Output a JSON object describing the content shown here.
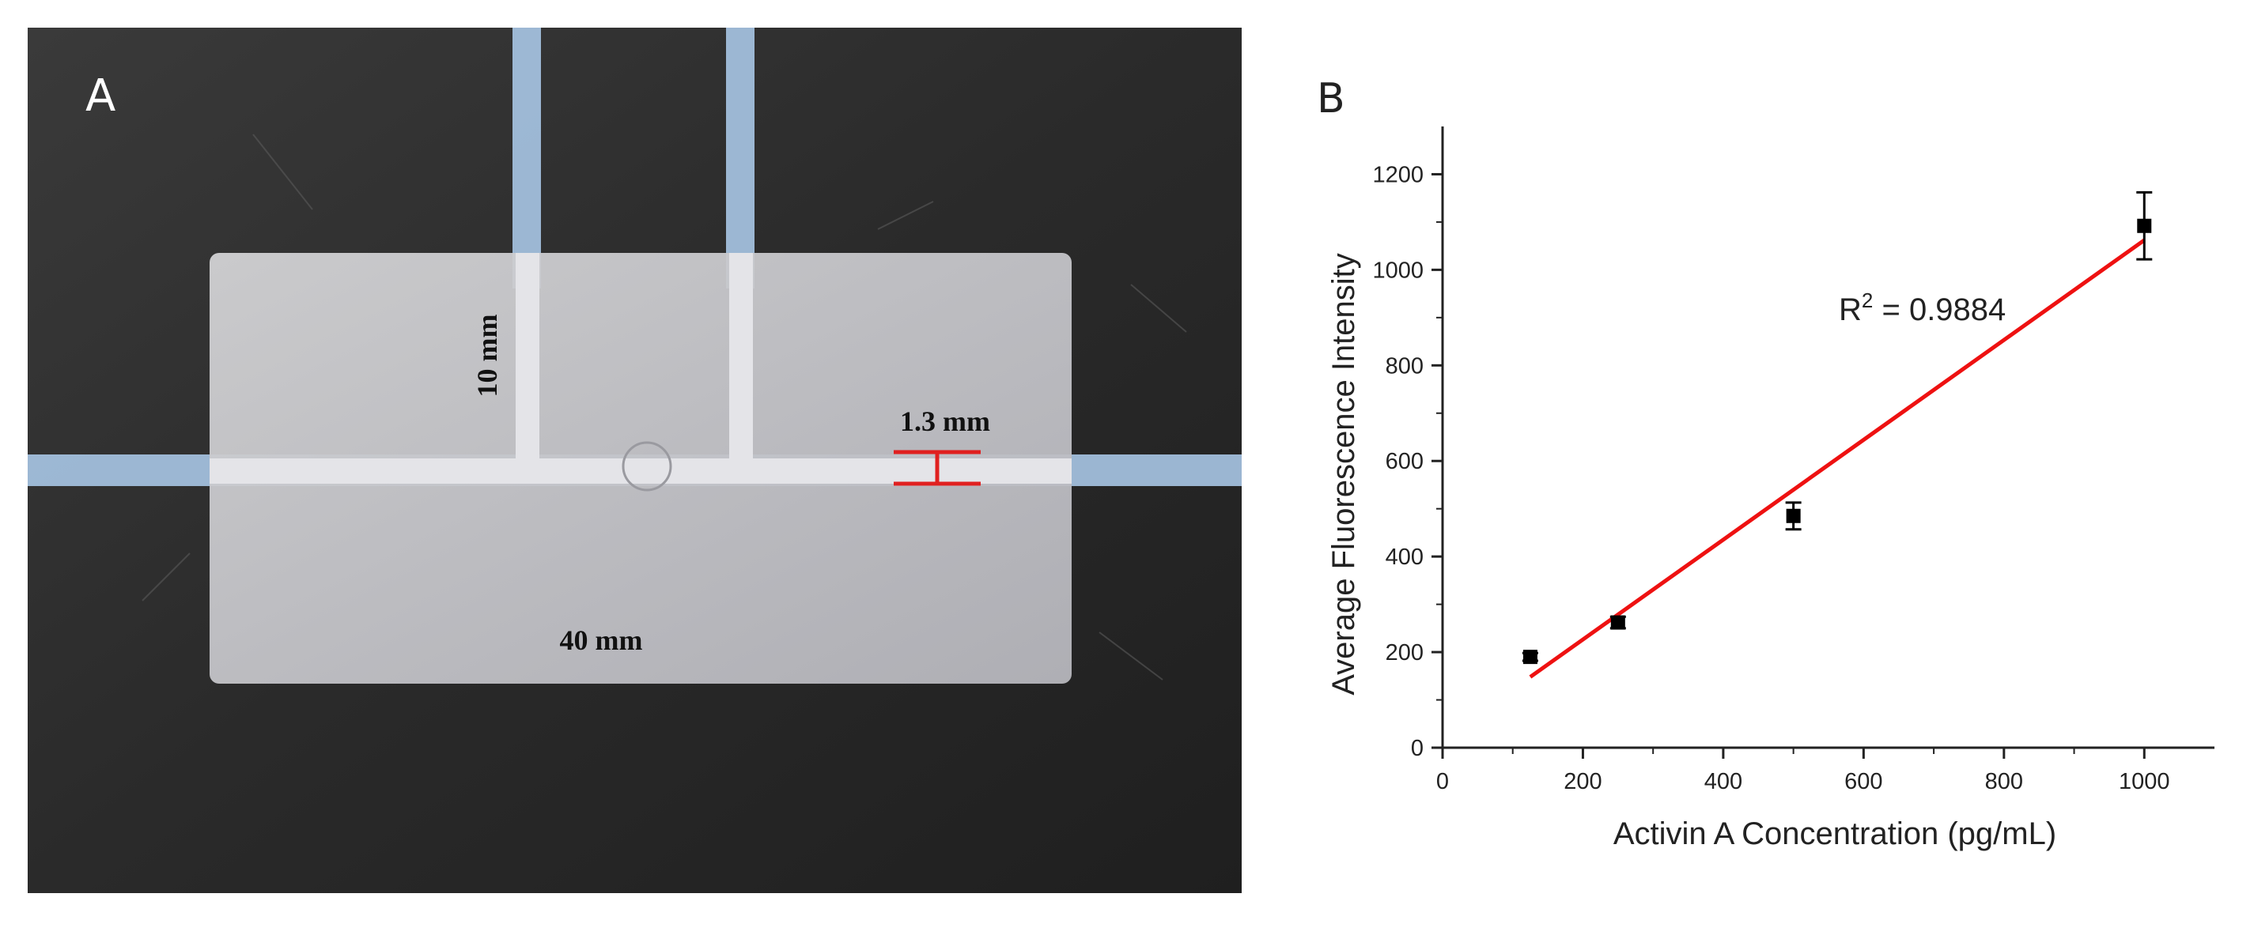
{
  "panel_a": {
    "label": "A",
    "dim_width": "40 mm",
    "dim_height": "10 mm",
    "dim_channel": "1.3 mm",
    "colors": {
      "background": "#2b2b2b",
      "chip": "#c9c9cb",
      "tube": "#a9c6e6",
      "marker": "#e02020"
    }
  },
  "panel_b": {
    "label": "B",
    "r2_prefix": "R",
    "r2_sup": "2",
    "r2_value": " = 0.9884"
  },
  "chart_data": {
    "type": "scatter",
    "title": "",
    "xlabel": "Activin A Concentration (pg/mL)",
    "ylabel": "Average Fluorescence Intensity",
    "xlim": [
      0,
      1100
    ],
    "ylim": [
      0,
      1300
    ],
    "x_ticks": [
      0,
      200,
      400,
      600,
      800,
      1000
    ],
    "y_ticks": [
      0,
      200,
      400,
      600,
      800,
      1000,
      1200
    ],
    "grid": false,
    "legend": "none",
    "series": [
      {
        "x": [
          125,
          250,
          500,
          1000
        ],
        "y": [
          190,
          262,
          485,
          1092
        ],
        "error": [
          8,
          12,
          28,
          70
        ],
        "color": "#000000",
        "marker": "square"
      }
    ],
    "fit_line": {
      "x": [
        125,
        1000
      ],
      "y": [
        148,
        1062
      ],
      "color": "#ee1111"
    },
    "annotation": "R2 = 0.9884"
  }
}
